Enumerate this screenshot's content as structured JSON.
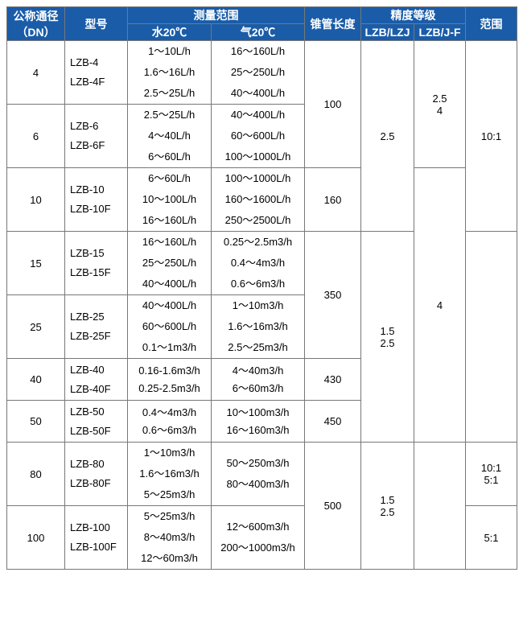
{
  "colors": {
    "header_bg": "#1a5ca8",
    "header_fg": "#ffffff",
    "border": "#777777",
    "bg": "#ffffff"
  },
  "headers": {
    "dn": "公称通径（DN）",
    "model": "型号",
    "meas": "测量范围",
    "water": "水20℃",
    "gas": "气20℃",
    "len": "锥管长度",
    "prec": "精度等级",
    "p1": "LZB/LZJ",
    "p2": "LZB/J-F",
    "range": "范围"
  },
  "rows": {
    "r4": {
      "dn": "4",
      "model1": "LZB-4",
      "model2": "LZB-4F",
      "water": [
        "1～10L/h",
        "1.6～16L/h",
        "2.5～25L/h"
      ],
      "gas": [
        "16～160L/h",
        "25～250L/h",
        "40～400L/h"
      ]
    },
    "r6": {
      "dn": "6",
      "model1": "LZB-6",
      "model2": "LZB-6F",
      "water": [
        "2.5～25L/h",
        "4～40L/h",
        "6～60L/h"
      ],
      "gas": [
        "40～400L/h",
        "60～600L/h",
        "100～1000L/h"
      ]
    },
    "r10": {
      "dn": "10",
      "model1": "LZB-10",
      "model2": "LZB-10F",
      "water": [
        "6～60L/h",
        "10～100L/h",
        "16～160L/h"
      ],
      "gas": [
        "100～1000L/h",
        "160～1600L/h",
        "250～2500L/h"
      ]
    },
    "r15": {
      "dn": "15",
      "model1": "LZB-15",
      "model2": "LZB-15F",
      "water": [
        "16～160L/h",
        "25～250L/h",
        "40～400L/h"
      ],
      "gas": [
        "0.25～2.5m3/h",
        "0.4～4m3/h",
        "0.6～6m3/h"
      ]
    },
    "r25": {
      "dn": "25",
      "model1": "LZB-25",
      "model2": "LZB-25F",
      "water": [
        "40～400L/h",
        "60～600L/h",
        "0.1～1m3/h"
      ],
      "gas": [
        "1～10m3/h",
        "1.6～16m3/h",
        "2.5～25m3/h"
      ]
    },
    "r40": {
      "dn": "40",
      "model1": "LZB-40",
      "model2": "LZB-40F",
      "water": [
        "0.16-1.6m3/h",
        "0.25-2.5m3/h"
      ],
      "gas": [
        "4～40m3/h",
        "6～60m3/h"
      ]
    },
    "r50": {
      "dn": "50",
      "model1": "LZB-50",
      "model2": "LZB-50F",
      "water": [
        "0.4～4m3/h",
        "0.6～6m3/h"
      ],
      "gas": [
        "10～100m3/h",
        "16～160m3/h"
      ]
    },
    "r80": {
      "dn": "80",
      "model1": "LZB-80",
      "model2": "LZB-80F",
      "water": [
        "1～10m3/h",
        "1.6～16m3/h",
        "5～25m3/h"
      ],
      "gas": [
        "50～250m3/h",
        "80～400m3/h"
      ]
    },
    "r100": {
      "dn": "100",
      "model1": "LZB-100",
      "model2": "LZB-100F",
      "water": [
        "5～25m3/h",
        "8～40m3/h",
        "12～60m3/h"
      ],
      "gas": [
        "12～600m3/h",
        "200～1000m3/h"
      ]
    }
  },
  "len": {
    "l100": "100",
    "l160": "160",
    "l350": "350",
    "l430": "430",
    "l450": "450",
    "l500": "500"
  },
  "prec1": {
    "g1": "2.5",
    "g2a": "1.5",
    "g2b": "2.5",
    "g3a": "1.5",
    "g3b": "2.5"
  },
  "prec2": {
    "g1a": "2.5",
    "g1b": "4",
    "g2": "4"
  },
  "rng": {
    "g1": "10:1",
    "g2a": "10:1",
    "g2b": "5:1",
    "g3": "5:1"
  }
}
